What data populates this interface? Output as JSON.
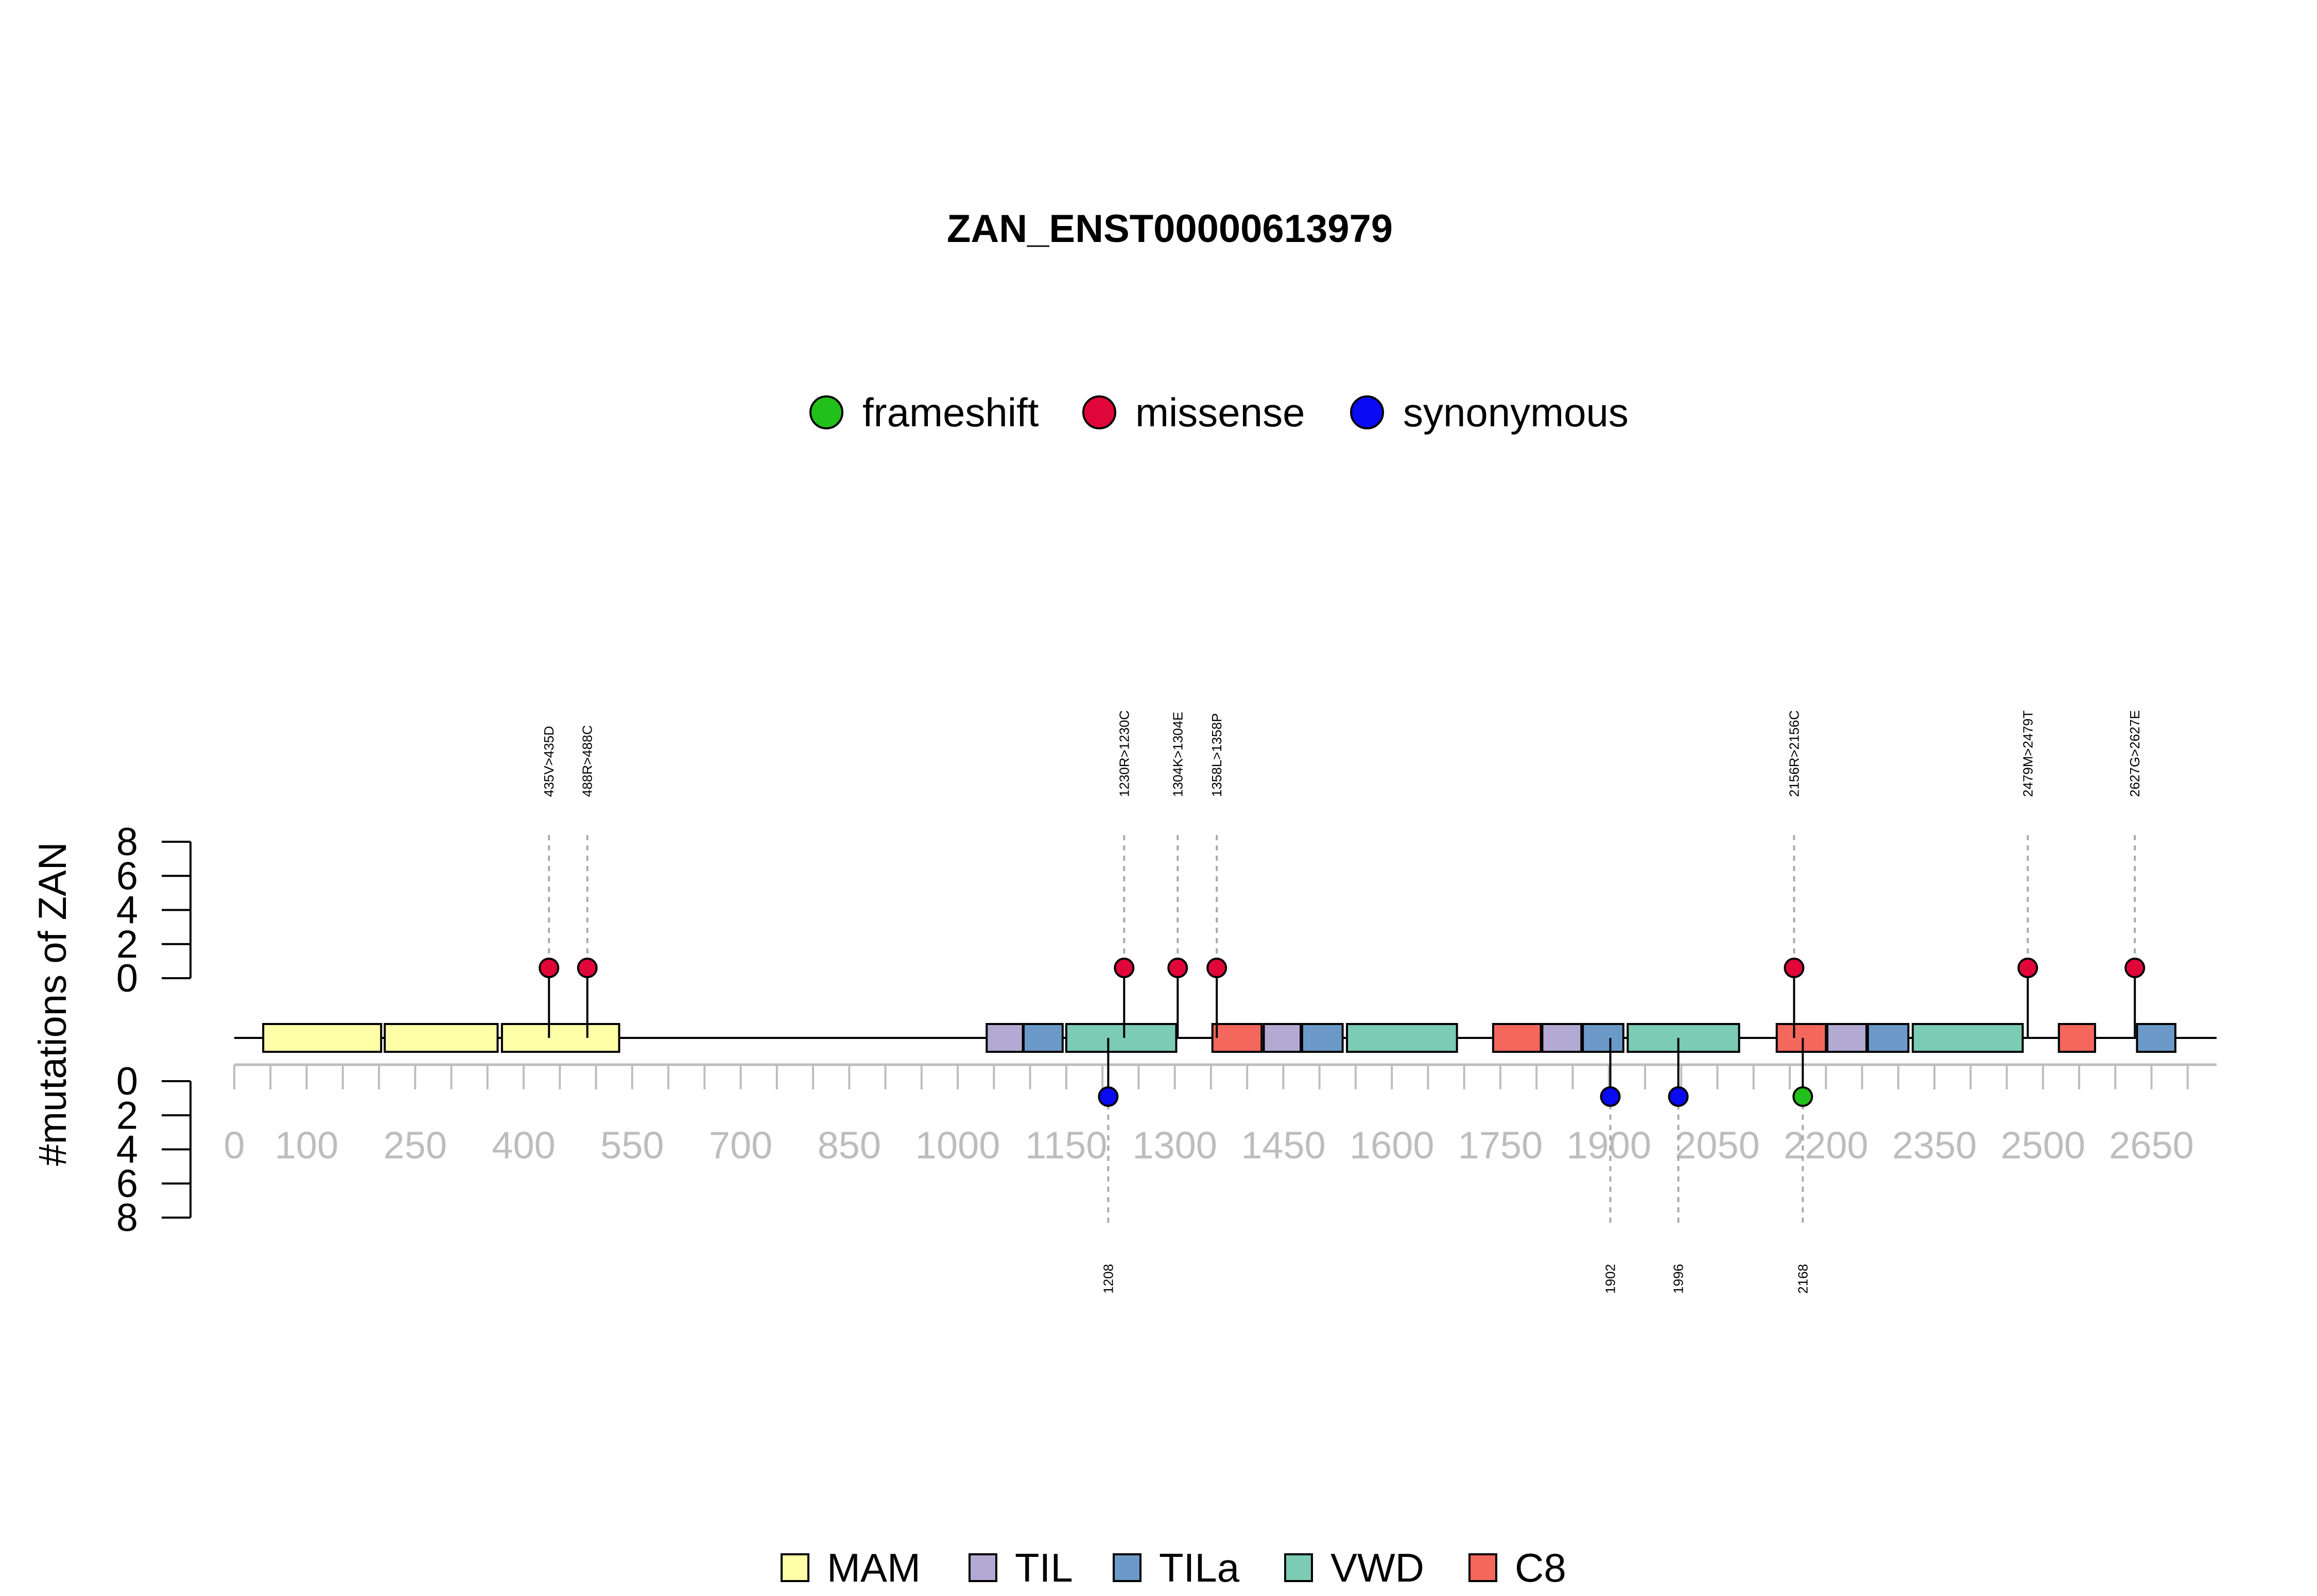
{
  "chart_data": {
    "type": "lollipop",
    "title": "ZAN_ENST00000613979",
    "ylabel": "#mutations of ZAN",
    "y_ticks": [
      "0",
      "2",
      "4",
      "6",
      "8"
    ],
    "ylim": [
      0,
      8
    ],
    "xlim": [
      0,
      2740
    ],
    "x_ticks": [
      "0",
      "100",
      "250",
      "400",
      "550",
      "700",
      "850",
      "1000",
      "1150",
      "1300",
      "1450",
      "1600",
      "1750",
      "1900",
      "2050",
      "2200",
      "2350",
      "2500",
      "2650"
    ],
    "mutation_types": [
      {
        "name": "frameshift",
        "color": "#22c01a"
      },
      {
        "name": "missense",
        "color": "#e0063a"
      },
      {
        "name": "synonymous",
        "color": "#0a0af5"
      }
    ],
    "domain_types": [
      {
        "name": "MAM",
        "color": "#ffffa8"
      },
      {
        "name": "TIL",
        "color": "#b3aad3"
      },
      {
        "name": "TILa",
        "color": "#6b9ac8"
      },
      {
        "name": "VWD",
        "color": "#7ccbb5"
      },
      {
        "name": "C8",
        "color": "#f4675d"
      }
    ],
    "domains": [
      {
        "type": "MAM",
        "start": 40,
        "end": 203
      },
      {
        "type": "MAM",
        "start": 208,
        "end": 364
      },
      {
        "type": "MAM",
        "start": 370,
        "end": 532
      },
      {
        "type": "TIL",
        "start": 1040,
        "end": 1090
      },
      {
        "type": "TILa",
        "start": 1091,
        "end": 1145
      },
      {
        "type": "VWD",
        "start": 1150,
        "end": 1302
      },
      {
        "type": "C8",
        "start": 1352,
        "end": 1420
      },
      {
        "type": "TIL",
        "start": 1423,
        "end": 1474
      },
      {
        "type": "TILa",
        "start": 1476,
        "end": 1532
      },
      {
        "type": "VWD",
        "start": 1538,
        "end": 1690
      },
      {
        "type": "C8",
        "start": 1740,
        "end": 1806
      },
      {
        "type": "TIL",
        "start": 1808,
        "end": 1862
      },
      {
        "type": "TILa",
        "start": 1864,
        "end": 1920
      },
      {
        "type": "VWD",
        "start": 1926,
        "end": 2080
      },
      {
        "type": "C8",
        "start": 2132,
        "end": 2200
      },
      {
        "type": "TIL",
        "start": 2202,
        "end": 2256
      },
      {
        "type": "TILa",
        "start": 2258,
        "end": 2314
      },
      {
        "type": "VWD",
        "start": 2320,
        "end": 2472
      },
      {
        "type": "C8",
        "start": 2522,
        "end": 2572
      },
      {
        "type": "TILa",
        "start": 2630,
        "end": 2683
      }
    ],
    "mutations_above": [
      {
        "pos": 435,
        "count": 1,
        "type": "missense",
        "label": "435V>435D"
      },
      {
        "pos": 488,
        "count": 1,
        "type": "missense",
        "label": "488R>488C"
      },
      {
        "pos": 1230,
        "count": 1,
        "type": "missense",
        "label": "1230R>1230C"
      },
      {
        "pos": 1304,
        "count": 1,
        "type": "missense",
        "label": "1304K>1304E"
      },
      {
        "pos": 1358,
        "count": 1,
        "type": "missense",
        "label": "1358L>1358P"
      },
      {
        "pos": 2156,
        "count": 1,
        "type": "missense",
        "label": "2156R>2156C"
      },
      {
        "pos": 2479,
        "count": 1,
        "type": "missense",
        "label": "2479M>2479T"
      },
      {
        "pos": 2627,
        "count": 1,
        "type": "missense",
        "label": "2627G>2627E"
      }
    ],
    "mutations_below": [
      {
        "pos": 1208,
        "count": 1,
        "type": "synonymous",
        "label": "1208"
      },
      {
        "pos": 1902,
        "count": 1,
        "type": "synonymous",
        "label": "1902"
      },
      {
        "pos": 1996,
        "count": 1,
        "type": "synonymous",
        "label": "1996"
      },
      {
        "pos": 2168,
        "count": 1,
        "type": "frameshift",
        "label": "2168"
      }
    ]
  }
}
